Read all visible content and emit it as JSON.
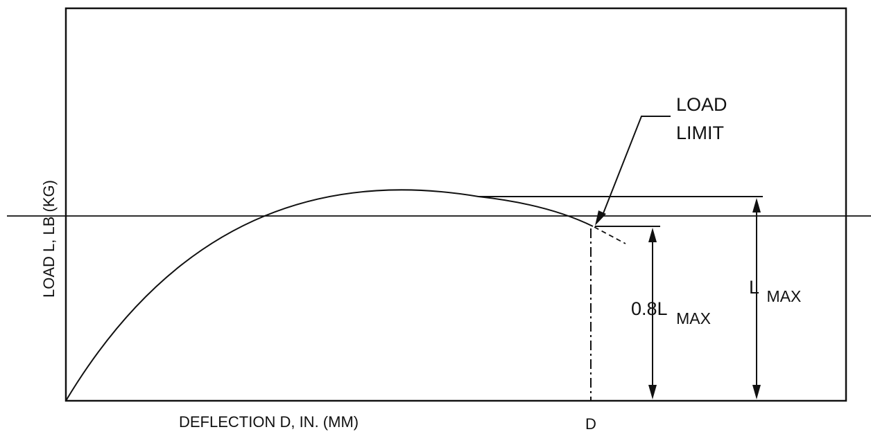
{
  "diagram": {
    "y_axis_label": "LOAD L, LB (KG)",
    "x_axis_label": "DEFLECTION D, IN. (MM)",
    "d_tick_label": "D",
    "callout_line1": "LOAD",
    "callout_line2": "LIMIT",
    "lmax_base": "L",
    "lmax_sub": "MAX",
    "frac_base": "0.8L",
    "frac_sub": "MAX",
    "colors": {
      "ink": "#111111",
      "background": "#ffffff"
    }
  }
}
